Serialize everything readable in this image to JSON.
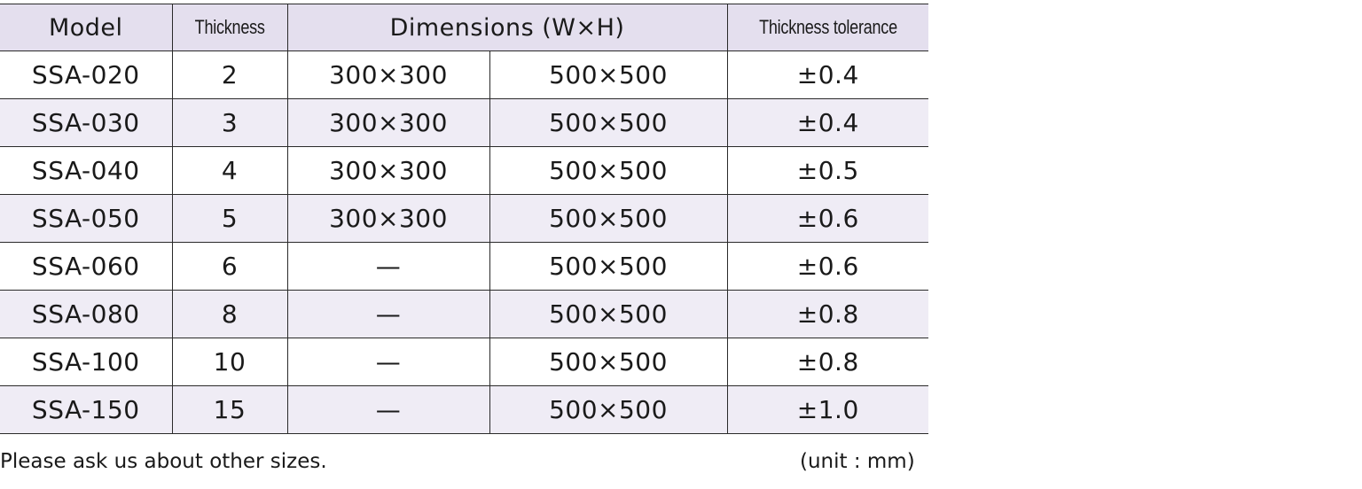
{
  "table": {
    "headers": {
      "model": "Model",
      "thickness": "Thickness",
      "dimensions": "Dimensions (W×H)",
      "tolerance": "Thickness tolerance"
    },
    "rows": [
      {
        "model": "SSA-020",
        "thickness": "2",
        "dim_a": "300×300",
        "dim_b": "500×500",
        "tolerance": "±0.4"
      },
      {
        "model": "SSA-030",
        "thickness": "3",
        "dim_a": "300×300",
        "dim_b": "500×500",
        "tolerance": "±0.4"
      },
      {
        "model": "SSA-040",
        "thickness": "4",
        "dim_a": "300×300",
        "dim_b": "500×500",
        "tolerance": "±0.5"
      },
      {
        "model": "SSA-050",
        "thickness": "5",
        "dim_a": "300×300",
        "dim_b": "500×500",
        "tolerance": "±0.6"
      },
      {
        "model": "SSA-060",
        "thickness": "6",
        "dim_a": "—",
        "dim_b": "500×500",
        "tolerance": "±0.6"
      },
      {
        "model": "SSA-080",
        "thickness": "8",
        "dim_a": "—",
        "dim_b": "500×500",
        "tolerance": "±0.8"
      },
      {
        "model": "SSA-100",
        "thickness": "10",
        "dim_a": "—",
        "dim_b": "500×500",
        "tolerance": "±0.8"
      },
      {
        "model": "SSA-150",
        "thickness": "15",
        "dim_a": "—",
        "dim_b": "500×500",
        "tolerance": "±1.0"
      }
    ]
  },
  "footer": {
    "note": "Please ask us about other sizes.",
    "unit": "(unit : mm)"
  },
  "colors": {
    "header_bg": "#e4dfee",
    "stripe_bg": "#efecf5",
    "border": "#2a2a2a"
  }
}
